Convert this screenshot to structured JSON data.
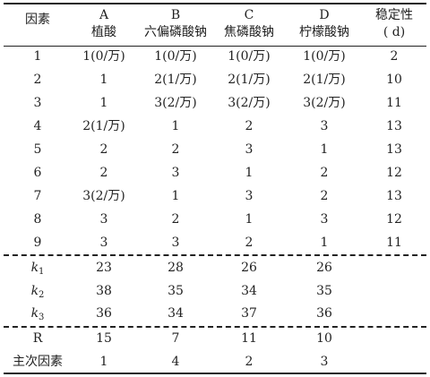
{
  "header": {
    "factor": "因素",
    "a_letter": "A",
    "a_name": "植酸",
    "b_letter": "B",
    "b_name": "六偏磷酸钠",
    "c_letter": "C",
    "c_name": "焦磷酸钠",
    "d_letter": "D",
    "d_name": "柠檬酸钠",
    "stability": "稳定性",
    "stability_unit": "( d)"
  },
  "rows": [
    {
      "n": "1",
      "a": "1(0/万)",
      "b": "1(0/万)",
      "c": "1(0/万)",
      "d": "1(0/万)",
      "s": "2"
    },
    {
      "n": "2",
      "a": "1",
      "b": "2(1/万)",
      "c": "2(1/万)",
      "d": "2(1/万)",
      "s": "10"
    },
    {
      "n": "3",
      "a": "1",
      "b": "3(2/万)",
      "c": "3(2/万)",
      "d": "3(2/万)",
      "s": "11"
    },
    {
      "n": "4",
      "a": "2(1/万)",
      "b": "1",
      "c": "2",
      "d": "3",
      "s": "13"
    },
    {
      "n": "5",
      "a": "2",
      "b": "2",
      "c": "3",
      "d": "1",
      "s": "13"
    },
    {
      "n": "6",
      "a": "2",
      "b": "3",
      "c": "1",
      "d": "2",
      "s": "12"
    },
    {
      "n": "7",
      "a": "3(2/万)",
      "b": "1",
      "c": "3",
      "d": "2",
      "s": "13"
    },
    {
      "n": "8",
      "a": "3",
      "b": "2",
      "c": "1",
      "d": "3",
      "s": "12"
    },
    {
      "n": "9",
      "a": "3",
      "b": "3",
      "c": "2",
      "d": "1",
      "s": "11"
    }
  ],
  "k_rows": [
    {
      "k": "k",
      "sub": "1",
      "a": "23",
      "b": "28",
      "c": "26",
      "d": "26"
    },
    {
      "k": "k",
      "sub": "2",
      "a": "38",
      "b": "35",
      "c": "34",
      "d": "35"
    },
    {
      "k": "k",
      "sub": "3",
      "a": "36",
      "b": "34",
      "c": "37",
      "d": "36"
    }
  ],
  "r_row": {
    "label": "R",
    "a": "15",
    "b": "7",
    "c": "11",
    "d": "10"
  },
  "order_row": {
    "label": "主次因素",
    "a": "1",
    "b": "4",
    "c": "2",
    "d": "3"
  }
}
